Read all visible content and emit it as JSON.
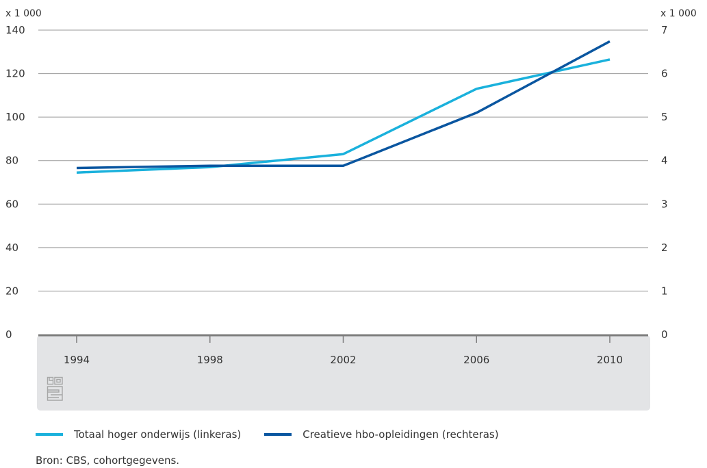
{
  "chart_data": {
    "type": "line",
    "x": [
      1994,
      1998,
      2002,
      2006,
      2010
    ],
    "x_tick_labels": [
      "1994",
      "1998",
      "2002",
      "2006",
      "2010"
    ],
    "y_left_unit": "x 1 000",
    "y_right_unit": "x 1 000",
    "y_left_ticks": [
      "0",
      "20",
      "40",
      "60",
      "80",
      "100",
      "120",
      "140"
    ],
    "y_right_ticks": [
      "0",
      "1",
      "2",
      "3",
      "4",
      "5",
      "6",
      "7"
    ],
    "y_left_lim": [
      0,
      140
    ],
    "y_right_lim": [
      0,
      7
    ],
    "grid": true,
    "legend_position": "bottom",
    "series": [
      {
        "name": "Totaal hoger onderwijs (linkeras)",
        "axis": "left",
        "color": "#1ab1dc",
        "values": [
          74.5,
          77,
          83,
          113,
          126.5
        ]
      },
      {
        "name": "Creatieve hbo-opleidingen (rechteras)",
        "axis": "right",
        "color": "#0a56a0",
        "values": [
          3.83,
          3.88,
          3.88,
          5.1,
          6.74
        ]
      }
    ]
  },
  "source_note": "Bron: CBS, cohortgegevens.",
  "colors": {
    "grid": "#9a9a9a",
    "baseline": "#7d7d7d",
    "x_axis_band": "#e3e4e6",
    "logo": "#a6a6a6"
  },
  "icons": {
    "logo": "cbs-logo-icon"
  }
}
